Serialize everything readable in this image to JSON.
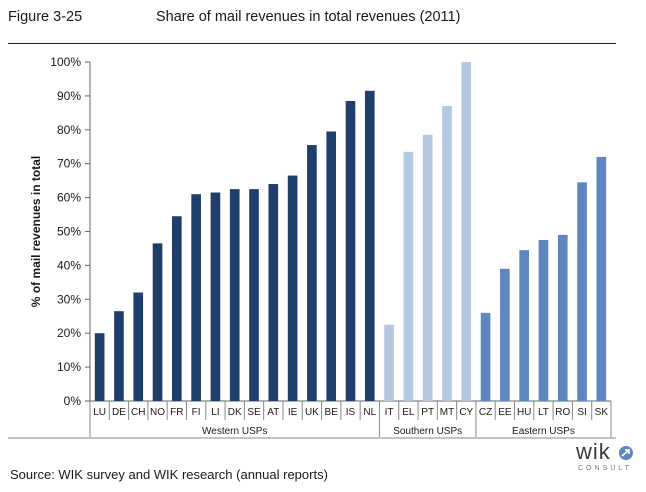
{
  "figure": {
    "number": "Figure 3-25",
    "title": "Share of mail revenues in total revenues (2011)",
    "source": "Source:  WIK survey and WIK research (annual reports)",
    "logo_main": "wik",
    "logo_sub": "CONSULT"
  },
  "chart_data": {
    "type": "bar",
    "title": "Share of mail revenues in total revenues (2011)",
    "ylabel": "% of mail revenues in total",
    "xlabel": "",
    "ylim": [
      0,
      100
    ],
    "yticks": [
      0,
      10,
      20,
      30,
      40,
      50,
      60,
      70,
      80,
      90,
      100
    ],
    "ytick_labels": [
      "0%",
      "10%",
      "20%",
      "30%",
      "40%",
      "50%",
      "60%",
      "70%",
      "80%",
      "90%",
      "100%"
    ],
    "grid": false,
    "categories": [
      "LU",
      "DE",
      "CH",
      "NO",
      "FR",
      "FI",
      "LI",
      "DK",
      "SE",
      "AT",
      "IE",
      "UK",
      "BE",
      "IS",
      "NL",
      "IT",
      "EL",
      "PT",
      "MT",
      "CY",
      "CZ",
      "EE",
      "HU",
      "LT",
      "RO",
      "SI",
      "SK"
    ],
    "values": [
      20,
      26.5,
      32,
      46.5,
      54.5,
      61,
      61.5,
      62.5,
      62.5,
      64,
      66.5,
      75.5,
      79.5,
      88.5,
      91.5,
      22.5,
      73.5,
      78.5,
      87,
      100,
      26,
      39,
      44.5,
      47.5,
      49,
      64.5,
      72
    ],
    "groups": [
      {
        "name": "Western USPs",
        "start": 0,
        "end": 14,
        "color": "#1f3e6b"
      },
      {
        "name": "Southern USPs",
        "start": 15,
        "end": 19,
        "color": "#b4c8e2"
      },
      {
        "name": "Eastern USPs",
        "start": 20,
        "end": 26,
        "color": "#5f86c0"
      }
    ]
  }
}
